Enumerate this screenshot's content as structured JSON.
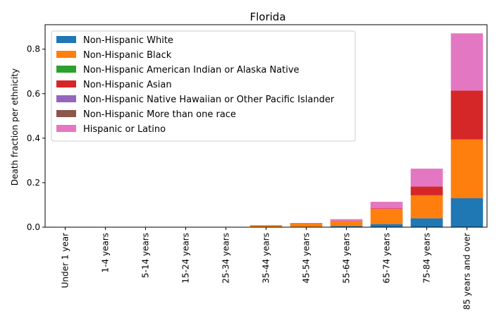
{
  "chart_data": {
    "type": "bar",
    "stacked": true,
    "title": "Florida",
    "xlabel": "",
    "ylabel": "Death fraction per ethnicity",
    "ylim": [
      0,
      0.91
    ],
    "yticks": [
      "0.0",
      "0.2",
      "0.4",
      "0.6",
      "0.8"
    ],
    "ytick_values": [
      0,
      0.2,
      0.4,
      0.6,
      0.8
    ],
    "categories": [
      "Under 1 year",
      "1-4 years",
      "5-14 years",
      "15-24 years",
      "25-34 years",
      "35-44 years",
      "45-54 years",
      "55-64 years",
      "65-74 years",
      "75-84 years",
      "85 years and over"
    ],
    "legend_position": "top-left",
    "grid": false,
    "series": [
      {
        "name": "Non-Hispanic White",
        "color": "#1f77b4",
        "values": [
          0,
          0,
          0,
          0,
          0,
          0.001,
          0.002,
          0.005,
          0.014,
          0.04,
          0.13
        ]
      },
      {
        "name": "Non-Hispanic Black",
        "color": "#ff7f0e",
        "values": [
          0,
          0,
          0,
          0,
          0.001,
          0.007,
          0.014,
          0.022,
          0.068,
          0.103,
          0.264
        ]
      },
      {
        "name": "Non-Hispanic American Indian or Alaska Native",
        "color": "#2ca02c",
        "values": [
          0,
          0,
          0,
          0,
          0,
          0,
          0,
          0,
          0,
          0,
          0
        ]
      },
      {
        "name": "Non-Hispanic Asian",
        "color": "#d62728",
        "values": [
          0,
          0,
          0,
          0,
          0,
          0,
          0.001,
          0.001,
          0.002,
          0.04,
          0.22
        ]
      },
      {
        "name": "Non-Hispanic Native Hawaiian or Other Pacific Islander",
        "color": "#9467bd",
        "values": [
          0,
          0,
          0,
          0,
          0,
          0,
          0,
          0,
          0,
          0,
          0
        ]
      },
      {
        "name": "Non-Hispanic More than one race",
        "color": "#8c564b",
        "values": [
          0,
          0,
          0,
          0,
          0,
          0,
          0,
          0,
          0,
          0,
          0
        ]
      },
      {
        "name": "Hispanic or Latino",
        "color": "#e377c2",
        "values": [
          0,
          0,
          0,
          0,
          0,
          0.001,
          0.002,
          0.008,
          0.03,
          0.08,
          0.257
        ]
      }
    ]
  }
}
